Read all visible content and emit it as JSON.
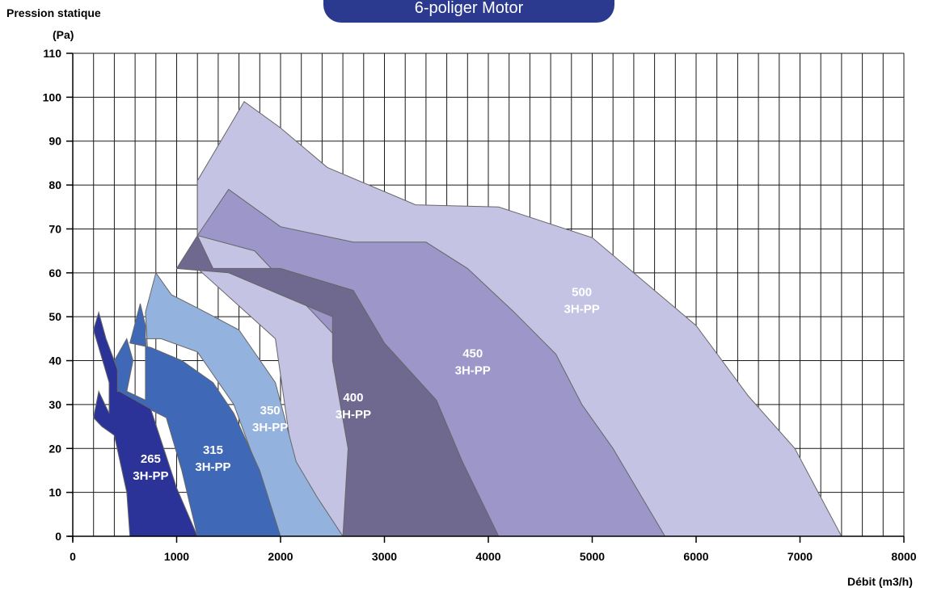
{
  "header": {
    "banner_text": "6-poliger Motor"
  },
  "chart_data": {
    "type": "area",
    "ylabel_line1": "Pression statique",
    "ylabel_line2": "(Pa)",
    "xlabel": "Débit (m3/h)",
    "xlim": [
      0,
      8000
    ],
    "ylim": [
      0,
      110
    ],
    "x_ticks": [
      0,
      1000,
      2000,
      3000,
      4000,
      5000,
      6000,
      7000,
      8000
    ],
    "y_ticks": [
      0,
      10,
      20,
      30,
      40,
      50,
      60,
      70,
      80,
      90,
      100,
      110
    ],
    "x_grid_step": 200,
    "y_grid_step": 10,
    "grid": true,
    "colors": {
      "500": "#c5c3e3",
      "450": "#9c96c9",
      "400": "#6f688f",
      "350": "#93b3de",
      "315": "#3f69b6",
      "265": "#2b3398",
      "outline": "#666666"
    },
    "series": [
      {
        "key": "500",
        "label_line1": "500",
        "label_line2": "3H-PP",
        "label_at": [
          4900,
          54
        ],
        "color": "#c5c3e3",
        "points": [
          [
            1200,
            81
          ],
          [
            1650,
            99
          ],
          [
            2000,
            93
          ],
          [
            2450,
            84
          ],
          [
            3300,
            75.5
          ],
          [
            4100,
            75
          ],
          [
            5000,
            68
          ],
          [
            5500,
            58
          ],
          [
            6000,
            48
          ],
          [
            6500,
            32
          ],
          [
            6950,
            20
          ],
          [
            7400,
            0
          ],
          [
            1950,
            0
          ],
          [
            2100,
            20
          ],
          [
            1950,
            45
          ],
          [
            1200,
            61
          ]
        ]
      },
      {
        "key": "450",
        "label_line1": "450",
        "label_line2": "3H-PP",
        "label_at": [
          3850,
          40
        ],
        "color": "#9c96c9",
        "points": [
          [
            1200,
            68.5
          ],
          [
            1500,
            79
          ],
          [
            2000,
            70.5
          ],
          [
            2700,
            67
          ],
          [
            3400,
            67
          ],
          [
            3800,
            61
          ],
          [
            4250,
            51
          ],
          [
            4650,
            41.5
          ],
          [
            4900,
            30
          ],
          [
            5200,
            20
          ],
          [
            5700,
            0
          ],
          [
            2600,
            0
          ],
          [
            2700,
            20
          ],
          [
            2550,
            45
          ],
          [
            1750,
            65
          ]
        ]
      },
      {
        "key": "400",
        "label_line1": "400",
        "label_line2": "3H-PP",
        "label_at": [
          2700,
          30
        ],
        "color": "#6f688f",
        "points": [
          [
            1000,
            61
          ],
          [
            1200,
            68.5
          ],
          [
            1350,
            61
          ],
          [
            2000,
            61
          ],
          [
            2700,
            56
          ],
          [
            3000,
            44
          ],
          [
            3500,
            31
          ],
          [
            3750,
            17
          ],
          [
            4100,
            0
          ],
          [
            2600,
            0
          ],
          [
            2650,
            20
          ],
          [
            2500,
            40
          ],
          [
            2500,
            50
          ],
          [
            2000,
            55
          ],
          [
            1500,
            60
          ]
        ]
      },
      {
        "key": "350",
        "label_line1": "350",
        "label_line2": "3H-PP",
        "label_at": [
          1900,
          27
        ],
        "color": "#93b3de",
        "points": [
          [
            700,
            51
          ],
          [
            800,
            60
          ],
          [
            950,
            55
          ],
          [
            1200,
            52
          ],
          [
            1600,
            47
          ],
          [
            1950,
            35
          ],
          [
            2150,
            17
          ],
          [
            2350,
            9
          ],
          [
            2600,
            0
          ],
          [
            1950,
            0
          ],
          [
            1800,
            14
          ],
          [
            1550,
            30
          ],
          [
            1200,
            42
          ],
          [
            850,
            45
          ],
          [
            700,
            45
          ],
          [
            750,
            30
          ]
        ]
      },
      {
        "key": "315",
        "label_line1": "315",
        "label_line2": "3H-PP",
        "label_at": [
          1350,
          18
        ],
        "color": "#3f69b6",
        "points": [
          [
            400,
            40
          ],
          [
            520,
            45
          ],
          [
            580,
            40
          ],
          [
            520,
            33
          ],
          [
            700,
            31
          ],
          [
            700,
            48
          ],
          [
            650,
            53
          ],
          [
            550,
            44
          ],
          [
            750,
            43
          ],
          [
            1050,
            40
          ],
          [
            1350,
            35
          ],
          [
            1550,
            28
          ],
          [
            1800,
            15
          ],
          [
            2000,
            0
          ],
          [
            1200,
            0
          ],
          [
            1050,
            15
          ],
          [
            900,
            27
          ],
          [
            400,
            33
          ]
        ]
      },
      {
        "key": "265",
        "label_line1": "265",
        "label_line2": "3H-PP",
        "label_at": [
          750,
          16
        ],
        "color": "#2b3398",
        "points": [
          [
            200,
            27
          ],
          [
            250,
            33
          ],
          [
            350,
            28
          ],
          [
            350,
            35
          ],
          [
            200,
            47
          ],
          [
            250,
            51
          ],
          [
            320,
            45
          ],
          [
            430,
            38
          ],
          [
            430,
            33
          ],
          [
            450,
            33
          ],
          [
            600,
            31
          ],
          [
            750,
            29
          ],
          [
            1000,
            11
          ],
          [
            1200,
            0
          ],
          [
            550,
            0
          ],
          [
            520,
            10
          ],
          [
            400,
            23
          ],
          [
            280,
            25
          ]
        ]
      }
    ]
  }
}
